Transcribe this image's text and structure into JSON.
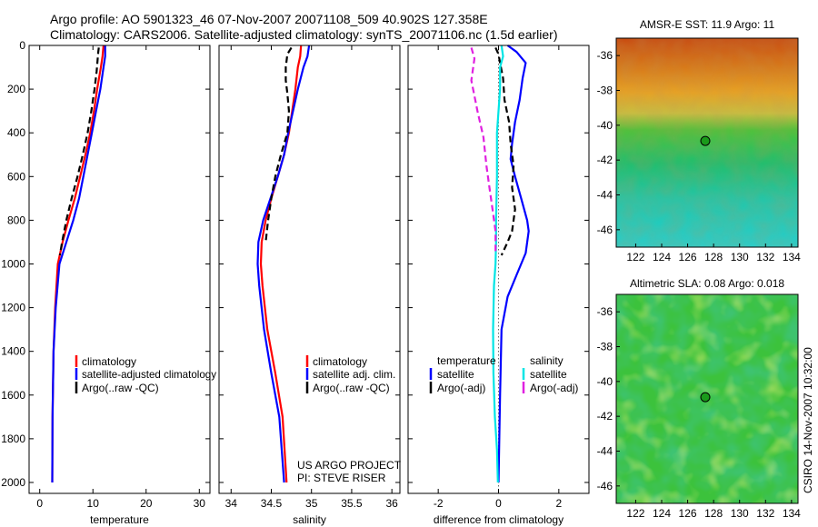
{
  "title": {
    "line1": "Argo profile: AO 5901323_46 07-Nov-2007 20071108_509 40.902S 127.358E",
    "line2": "Climatology: CARS2006. Satellite-adjusted climatology: synTS_20071106.nc (1.5d earlier)"
  },
  "footer": {
    "project": "US ARGO PROJECT",
    "pi": "PI: STEVE RISER",
    "credit": "CSIRO 14-Nov-2007 10:32:00"
  },
  "colors": {
    "climatology": "#ff0000",
    "satellite": "#0000ff",
    "argo": "#000000",
    "satellite_salinity": "#00e5e5",
    "argo_salinity": "#e020e0"
  },
  "chart_data": [
    {
      "id": "temperature",
      "type": "line",
      "xlabel": "temperature",
      "ylabel": "",
      "xlim": [
        -2,
        32
      ],
      "ylim": [
        2050,
        0
      ],
      "xticks": [
        0,
        10,
        20,
        30
      ],
      "yticks": [
        0,
        200,
        400,
        600,
        800,
        1000,
        1200,
        1400,
        1600,
        1800,
        2000
      ],
      "legend": [
        "climatology",
        "satellite-adjusted climatology",
        "Argo(..raw -QC)"
      ],
      "series": [
        {
          "name": "climatology",
          "color": "#ff0000",
          "dash": "solid",
          "x": [
            12.0,
            11.8,
            11.5,
            10.8,
            10.2,
            9.5,
            8.6,
            7.6,
            6.6,
            5.4,
            4.3,
            3.4,
            2.9,
            2.6,
            2.4,
            2.35
          ],
          "y": [
            0,
            50,
            100,
            200,
            300,
            400,
            500,
            600,
            700,
            800,
            900,
            1000,
            1200,
            1400,
            1700,
            2000
          ]
        },
        {
          "name": "satellite-adjusted climatology",
          "color": "#0000ff",
          "dash": "solid",
          "x": [
            12.3,
            12.3,
            12.0,
            11.4,
            10.6,
            9.8,
            9.0,
            8.2,
            7.4,
            6.3,
            5.0,
            3.7,
            3.0,
            2.6,
            2.4,
            2.35
          ],
          "y": [
            0,
            50,
            100,
            200,
            300,
            400,
            500,
            600,
            700,
            800,
            900,
            1000,
            1200,
            1400,
            1700,
            2000
          ]
        },
        {
          "name": "Argo(..raw -QC)",
          "color": "#000000",
          "dash": "dashed",
          "x": [
            11.1,
            11.0,
            10.9,
            10.7,
            10.3,
            9.7,
            9.0,
            8.1,
            7.1,
            6.0,
            5.0,
            4.2,
            3.8
          ],
          "y": [
            10,
            30,
            60,
            120,
            200,
            300,
            400,
            500,
            600,
            700,
            800,
            900,
            960
          ]
        }
      ]
    },
    {
      "id": "salinity",
      "type": "line",
      "xlabel": "salinity",
      "ylabel": "",
      "xlim": [
        33.85,
        36.1
      ],
      "ylim": [
        2050,
        0
      ],
      "xticks": [
        34,
        34.5,
        35,
        35.5,
        36
      ],
      "legend": [
        "climatology",
        "satellite adj. clim.",
        "Argo(..raw -QC)"
      ],
      "series": [
        {
          "name": "climatology",
          "color": "#ff0000",
          "dash": "solid",
          "x": [
            34.87,
            34.86,
            34.83,
            34.8,
            34.76,
            34.72,
            34.66,
            34.58,
            34.5,
            34.43,
            34.38,
            34.37,
            34.39,
            34.45,
            34.55,
            34.64,
            34.69
          ],
          "y": [
            0,
            50,
            100,
            200,
            300,
            400,
            500,
            600,
            700,
            800,
            900,
            1000,
            1100,
            1300,
            1500,
            1700,
            2000
          ]
        },
        {
          "name": "satellite adj. clim.",
          "color": "#0000ff",
          "dash": "solid",
          "x": [
            34.97,
            34.95,
            34.9,
            34.83,
            34.77,
            34.71,
            34.66,
            34.58,
            34.49,
            34.4,
            34.34,
            34.33,
            34.35,
            34.41,
            34.5,
            34.6,
            34.66
          ],
          "y": [
            0,
            50,
            100,
            200,
            300,
            400,
            500,
            600,
            700,
            800,
            900,
            1000,
            1100,
            1300,
            1500,
            1700,
            2000
          ]
        },
        {
          "name": "Argo(..raw -QC)",
          "color": "#000000",
          "dash": "dashed",
          "x": [
            34.75,
            34.7,
            34.68,
            34.68,
            34.7,
            34.72,
            34.7,
            34.62,
            34.55,
            34.5,
            34.46,
            34.43
          ],
          "y": [
            10,
            40,
            100,
            160,
            220,
            300,
            400,
            500,
            600,
            700,
            800,
            900
          ]
        }
      ]
    },
    {
      "id": "difference",
      "type": "line",
      "xlabel": "difference from climatology",
      "ylabel": "",
      "xlim": [
        -3,
        3
      ],
      "ylim": [
        2050,
        0
      ],
      "xticks": [
        -2,
        0,
        2
      ],
      "legend_groups": [
        {
          "title": "temperature",
          "entries": [
            "satellite",
            "Argo(-adj)"
          ]
        },
        {
          "title": "salinity",
          "entries": [
            "satellite",
            "Argo(-adj)"
          ]
        }
      ],
      "series": [
        {
          "name": "temperature satellite",
          "color": "#0000ff",
          "dash": "solid",
          "x": [
            0.3,
            0.6,
            0.9,
            0.8,
            0.7,
            0.55,
            0.45,
            0.4,
            0.55,
            0.75,
            0.95,
            1.0,
            0.9,
            0.6,
            0.3,
            0.1,
            0.05,
            0.0
          ],
          "y": [
            0,
            30,
            80,
            150,
            250,
            350,
            450,
            520,
            600,
            700,
            800,
            850,
            950,
            1050,
            1150,
            1300,
            1600,
            2000
          ]
        },
        {
          "name": "temperature Argo(-adj)",
          "color": "#000000",
          "dash": "dashed",
          "x": [
            -0.1,
            0.0,
            0.05,
            0.15,
            0.2,
            0.35,
            0.4,
            0.5,
            0.45,
            0.55,
            0.45,
            0.3,
            0.1
          ],
          "y": [
            10,
            40,
            80,
            150,
            250,
            350,
            450,
            550,
            650,
            750,
            850,
            900,
            960
          ]
        },
        {
          "name": "salinity satellite",
          "color": "#00e5e5",
          "dash": "solid",
          "x": [
            0.1,
            0.15,
            0.05,
            0.05,
            0.0,
            -0.05,
            -0.05,
            -0.08,
            -0.08,
            -0.1,
            -0.15,
            -0.18,
            -0.17,
            -0.12,
            -0.05,
            -0.02
          ],
          "y": [
            0,
            50,
            100,
            200,
            300,
            400,
            600,
            800,
            900,
            1000,
            1100,
            1300,
            1500,
            1700,
            1850,
            2000
          ]
        },
        {
          "name": "salinity Argo(-adj)",
          "color": "#e020e0",
          "dash": "dashed",
          "x": [
            -0.9,
            -0.8,
            -0.9,
            -0.7,
            -0.5,
            -0.4,
            -0.3,
            -0.2,
            -0.1,
            -0.1
          ],
          "y": [
            10,
            60,
            160,
            300,
            420,
            550,
            650,
            750,
            850,
            950
          ]
        }
      ]
    }
  ],
  "maps": [
    {
      "id": "sst",
      "title": "AMSR-E SST: 11.9 Argo: 11",
      "xticks": [
        122,
        124,
        126,
        128,
        130,
        132,
        134
      ],
      "yticks": [
        -36,
        -38,
        -40,
        -42,
        -44,
        -46
      ],
      "lon_range": [
        120.5,
        134.5
      ],
      "lat_range": [
        -47,
        -35
      ],
      "float_lon": 127.36,
      "float_lat": -40.9
    },
    {
      "id": "sla",
      "title": "Altimetric SLA: 0.08 Argo: 0.018",
      "xticks": [
        122,
        124,
        126,
        128,
        130,
        132,
        134
      ],
      "yticks": [
        -36,
        -38,
        -40,
        -42,
        -44,
        -46
      ],
      "lon_range": [
        120.5,
        134.5
      ],
      "lat_range": [
        -47,
        -35
      ],
      "float_lon": 127.36,
      "float_lat": -40.9
    }
  ]
}
